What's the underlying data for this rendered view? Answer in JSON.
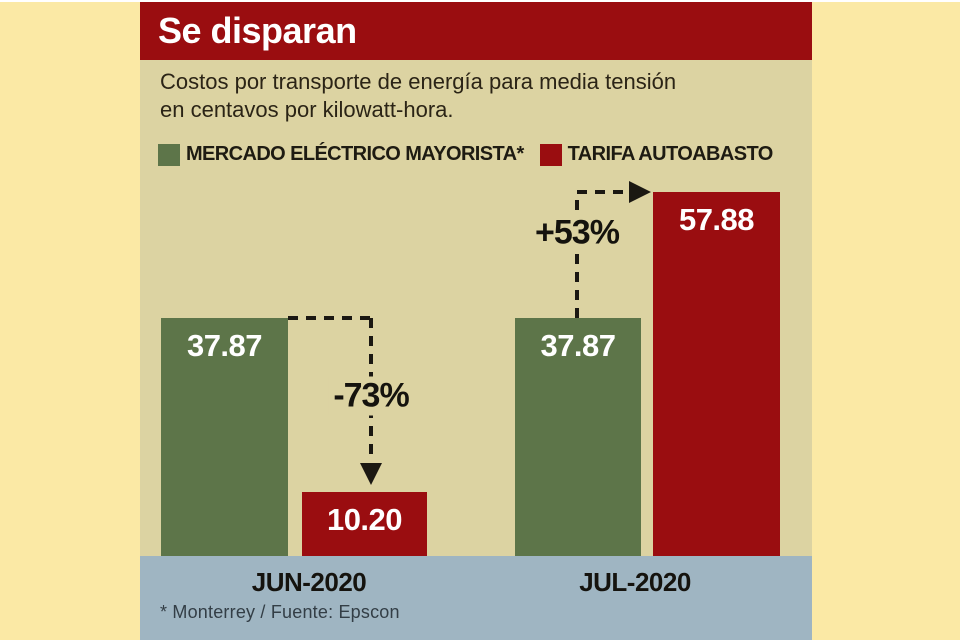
{
  "title": "Se disparan",
  "subtitle": "Costos por transporte de energía para media tensión\nen centavos por kilowatt-hora.",
  "legend": [
    {
      "label": "MERCADO ELÉCTRICO MAYORISTA*",
      "color": "#5D7549"
    },
    {
      "label": "TARIFA AUTOABASTO",
      "color": "#9A0D10"
    }
  ],
  "footnote": "* Monterrey / Fuente: Epscon",
  "chart_data": {
    "type": "bar",
    "title": "Se disparan",
    "subtitle": "Costos por transporte de energía para media tensión en centavos por kilowatt-hora.",
    "categories": [
      "JUN-2020",
      "JUL-2020"
    ],
    "series": [
      {
        "name": "MERCADO ELÉCTRICO MAYORISTA*",
        "color": "#5D7549",
        "values": [
          37.87,
          37.87
        ]
      },
      {
        "name": "TARIFA AUTOABASTO",
        "color": "#9A0D10",
        "values": [
          10.2,
          57.88
        ]
      }
    ],
    "bars": [
      {
        "category": "JUN-2020",
        "series": "MERCADO ELÉCTRICO MAYORISTA*",
        "value": 37.87,
        "display": "37.87",
        "color": "#5D7549"
      },
      {
        "category": "JUN-2020",
        "series": "TARIFA AUTOABASTO",
        "value": 10.2,
        "display": "10.20",
        "color": "#9A0D10"
      },
      {
        "category": "JUL-2020",
        "series": "MERCADO ELÉCTRICO MAYORISTA*",
        "value": 37.87,
        "display": "37.87",
        "color": "#5D7549"
      },
      {
        "category": "JUL-2020",
        "series": "TARIFA AUTOABASTO",
        "value": 57.88,
        "display": "57.88",
        "color": "#9A0D10"
      }
    ],
    "annotations": [
      {
        "category": "JUN-2020",
        "label": "-73%",
        "direction": "down"
      },
      {
        "category": "JUL-2020",
        "label": "+53%",
        "direction": "up"
      }
    ],
    "ylim": [
      0,
      60
    ],
    "grid": false,
    "legend_position": "top",
    "value_labels_inside_bars": true
  },
  "colors": {
    "page_background": "#FBE9A5",
    "panel_background": "#DCD3A2",
    "header_background": "#9A0D10",
    "footer_band": "#9FB5C2",
    "bar_green": "#5D7549",
    "bar_red": "#9A0D10",
    "annotation_ink": "#1B1812",
    "value_text": "#FFFFFF"
  }
}
